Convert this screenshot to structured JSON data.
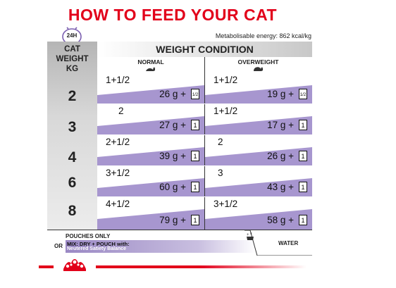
{
  "title": "HOW TO FEED YOUR CAT",
  "clock_label": "24H",
  "energy": "Metabolisable energy: 862 kcal/kg",
  "headers": {
    "cat_weight": [
      "CAT",
      "WEIGHT",
      "KG"
    ],
    "weight_condition": "WEIGHT CONDITION",
    "normal": "NORMAL",
    "overweight": "OVERWEIGHT"
  },
  "rows": [
    {
      "weight": "2",
      "normal": {
        "pouches": "1+1/2",
        "grams": "26 g",
        "plus": "+",
        "pouch_icon": "1/2"
      },
      "overweight": {
        "pouches": "1+1/2",
        "grams": "19 g",
        "plus": "+",
        "pouch_icon": "1/2"
      }
    },
    {
      "weight": "3",
      "normal": {
        "pouches": "2",
        "grams": "27 g",
        "plus": "+",
        "pouch_icon": "1"
      },
      "overweight": {
        "pouches": "1+1/2",
        "grams": "17 g",
        "plus": "+",
        "pouch_icon": "1"
      }
    },
    {
      "weight": "4",
      "normal": {
        "pouches": "2+1/2",
        "grams": "39 g",
        "plus": "+",
        "pouch_icon": "1"
      },
      "overweight": {
        "pouches": "2",
        "grams": "26 g",
        "plus": "+",
        "pouch_icon": "1"
      }
    },
    {
      "weight": "6",
      "normal": {
        "pouches": "3+1/2",
        "grams": "60 g",
        "plus": "+",
        "pouch_icon": "1"
      },
      "overweight": {
        "pouches": "3",
        "grams": "43 g",
        "plus": "+",
        "pouch_icon": "1"
      }
    },
    {
      "weight": "8",
      "normal": {
        "pouches": "4+1/2",
        "grams": "79 g",
        "plus": "+",
        "pouch_icon": "1"
      },
      "overweight": {
        "pouches": "3+1/2",
        "grams": "58 g",
        "plus": "+",
        "pouch_icon": "1"
      }
    }
  ],
  "legend": {
    "pouches_only": "POUCHES ONLY",
    "or": "OR",
    "mix_line1": "MIX: DRY + POUCH with:",
    "mix_line2": "Neutered Satiety Balance",
    "water": "WATER"
  },
  "colors": {
    "title_red": "#e2001a",
    "band_purple": "#a796cf",
    "band_light": "#d4cbe8"
  },
  "icons": [
    "clock-icon",
    "cat-normal-icon",
    "cat-overweight-icon",
    "pouch-icon",
    "water-bowl-icon",
    "royal-canin-crown-logo"
  ]
}
